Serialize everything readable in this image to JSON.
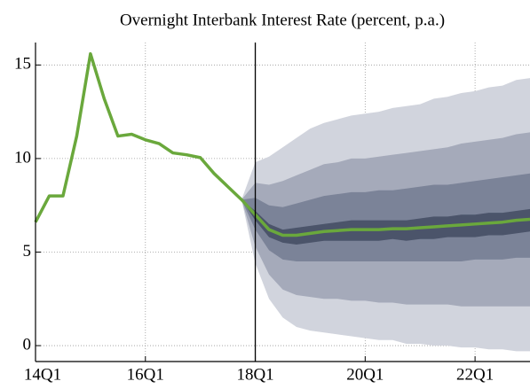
{
  "chart_data": {
    "type": "fan",
    "title": "Overnight Interbank Interest Rate (percent, p.a.)",
    "categories": [
      "14Q1",
      null,
      null,
      null,
      null,
      null,
      null,
      null,
      "16Q1",
      null,
      null,
      null,
      null,
      null,
      null,
      null,
      "18Q1",
      null,
      null,
      null,
      null,
      null,
      null,
      null,
      "20Q1",
      null,
      null,
      null,
      null,
      null,
      null,
      null,
      "22Q1",
      null,
      null,
      null,
      null
    ],
    "values": [
      6.6,
      8.0,
      8.0,
      11.2,
      15.6,
      13.2,
      11.2,
      11.3,
      11.0,
      10.8,
      10.3,
      10.2,
      10.05,
      9.2,
      8.5,
      7.8,
      7.0,
      6.2,
      5.9,
      5.9,
      6.0,
      6.1,
      6.15,
      6.2,
      6.2,
      6.2,
      6.25,
      6.25,
      6.3,
      6.35,
      6.4,
      6.45,
      6.5,
      6.55,
      6.6,
      6.7,
      6.75
    ],
    "color": "#6aa83c",
    "bands": [
      {
        "color": "#d1d4dd",
        "upper": [
          null,
          null,
          null,
          null,
          null,
          null,
          null,
          null,
          null,
          null,
          null,
          null,
          null,
          null,
          null,
          7.8,
          9.8,
          10.1,
          10.6,
          11.1,
          11.6,
          11.9,
          12.1,
          12.3,
          12.4,
          12.5,
          12.7,
          12.8,
          12.9,
          13.2,
          13.3,
          13.5,
          13.6,
          13.8,
          13.9,
          14.2,
          14.3
        ],
        "lower": [
          null,
          null,
          null,
          null,
          null,
          null,
          null,
          null,
          null,
          null,
          null,
          null,
          null,
          null,
          null,
          7.8,
          4.4,
          2.5,
          1.5,
          1.0,
          0.8,
          0.7,
          0.6,
          0.5,
          0.4,
          0.3,
          0.3,
          0.1,
          0.1,
          0.0,
          0.0,
          -0.1,
          -0.1,
          -0.2,
          -0.2,
          -0.3,
          -0.3
        ]
      },
      {
        "color": "#a5aaba",
        "upper": [
          null,
          null,
          null,
          null,
          null,
          null,
          null,
          null,
          null,
          null,
          null,
          null,
          null,
          null,
          null,
          7.8,
          8.7,
          8.6,
          8.8,
          9.1,
          9.4,
          9.7,
          9.8,
          10.0,
          10.0,
          10.1,
          10.2,
          10.3,
          10.4,
          10.5,
          10.6,
          10.8,
          10.9,
          11.0,
          11.1,
          11.3,
          11.4
        ],
        "lower": [
          null,
          null,
          null,
          null,
          null,
          null,
          null,
          null,
          null,
          null,
          null,
          null,
          null,
          null,
          null,
          7.8,
          5.3,
          3.8,
          3.0,
          2.7,
          2.6,
          2.5,
          2.5,
          2.4,
          2.4,
          2.3,
          2.3,
          2.2,
          2.2,
          2.2,
          2.2,
          2.1,
          2.1,
          2.1,
          2.1,
          2.1,
          2.1
        ]
      },
      {
        "color": "#7b8398",
        "upper": [
          null,
          null,
          null,
          null,
          null,
          null,
          null,
          null,
          null,
          null,
          null,
          null,
          null,
          null,
          null,
          7.8,
          7.9,
          7.5,
          7.4,
          7.6,
          7.8,
          8.0,
          8.1,
          8.2,
          8.2,
          8.3,
          8.3,
          8.4,
          8.5,
          8.6,
          8.6,
          8.7,
          8.8,
          8.9,
          9.0,
          9.1,
          9.2
        ],
        "lower": [
          null,
          null,
          null,
          null,
          null,
          null,
          null,
          null,
          null,
          null,
          null,
          null,
          null,
          null,
          null,
          7.8,
          6.2,
          5.1,
          4.6,
          4.5,
          4.5,
          4.5,
          4.5,
          4.5,
          4.5,
          4.5,
          4.5,
          4.5,
          4.5,
          4.5,
          4.5,
          4.5,
          4.6,
          4.6,
          4.6,
          4.7,
          4.7
        ]
      },
      {
        "color": "#4b546a",
        "upper": [
          null,
          null,
          null,
          null,
          null,
          null,
          null,
          null,
          null,
          null,
          null,
          null,
          null,
          null,
          null,
          7.8,
          7.2,
          6.5,
          6.2,
          6.3,
          6.4,
          6.5,
          6.6,
          6.7,
          6.7,
          6.7,
          6.7,
          6.7,
          6.8,
          6.9,
          6.9,
          7.0,
          7.0,
          7.1,
          7.1,
          7.2,
          7.3
        ],
        "lower": [
          null,
          null,
          null,
          null,
          null,
          null,
          null,
          null,
          null,
          null,
          null,
          null,
          null,
          null,
          null,
          7.8,
          6.7,
          5.8,
          5.5,
          5.4,
          5.5,
          5.6,
          5.6,
          5.6,
          5.6,
          5.6,
          5.7,
          5.6,
          5.7,
          5.7,
          5.8,
          5.8,
          5.8,
          5.9,
          5.9,
          6.0,
          6.1
        ]
      }
    ],
    "vline": "18Q1",
    "ylim": [
      -0.85,
      16.2
    ],
    "yticks": [
      0,
      5,
      10,
      15
    ],
    "grid": true
  }
}
